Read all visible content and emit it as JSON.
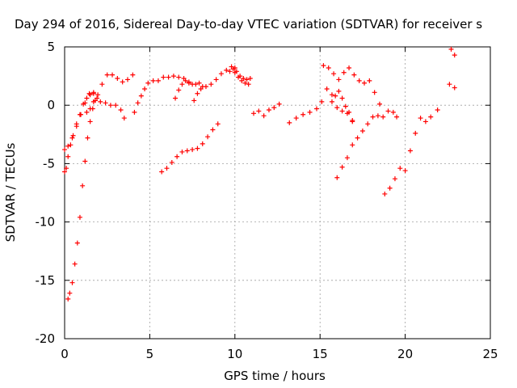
{
  "chart_data": {
    "type": "scatter",
    "title": "Day 294 of 2016, Sidereal Day-to-day VTEC variation (SDTVAR) for receiver s",
    "xlabel": "GPS time / hours",
    "ylabel": "SDTVAR / TECUs",
    "xlim": [
      0,
      25
    ],
    "ylim": [
      -20,
      5
    ],
    "xticks": [
      0,
      5,
      10,
      15,
      20,
      25
    ],
    "yticks": [
      -20,
      -15,
      -10,
      -5,
      0,
      5
    ],
    "x_tick_labels": [
      "0",
      "5",
      "10",
      "15",
      "20",
      "25"
    ],
    "y_tick_labels": [
      "-20",
      "-15",
      "-10",
      "-5",
      "0",
      "5"
    ],
    "grid": true,
    "marker": "+",
    "color": "#ff0000",
    "series": [
      {
        "x": [
          0.0,
          0.1,
          0.2,
          0.35,
          0.5,
          0.7,
          0.9,
          1.1,
          1.3,
          1.5,
          1.7
        ],
        "y": [
          -5.7,
          -5.4,
          -4.4,
          -3.4,
          -2.6,
          -1.6,
          -0.8,
          0.1,
          0.6,
          0.9,
          1.0
        ]
      },
      {
        "x": [
          0.0,
          0.2,
          0.45,
          0.7,
          0.95,
          1.2,
          1.45,
          1.7,
          1.95,
          2.2,
          2.5,
          2.8,
          3.1,
          3.4,
          3.7,
          4.0
        ],
        "y": [
          -3.8,
          -3.5,
          -2.8,
          -1.8,
          -0.8,
          0.2,
          1.0,
          1.1,
          0.9,
          1.8,
          2.6,
          2.6,
          2.3,
          2.0,
          2.2,
          2.6
        ]
      },
      {
        "x": [
          1.3,
          1.5,
          1.7,
          1.9,
          2.1,
          2.4,
          2.7,
          3.0,
          3.3,
          3.5
        ],
        "y": [
          -0.6,
          -0.3,
          0.3,
          0.6,
          0.3,
          0.2,
          0.0,
          0.0,
          -0.4,
          -1.1
        ]
      },
      {
        "x": [
          0.2,
          0.3,
          0.45,
          0.6,
          0.75,
          0.9,
          1.05,
          1.2,
          1.35,
          1.5,
          1.65,
          1.8
        ],
        "y": [
          -16.6,
          -16.1,
          -15.2,
          -13.6,
          -11.8,
          -9.6,
          -6.9,
          -4.8,
          -2.8,
          -1.4,
          -0.3,
          0.4
        ]
      },
      {
        "x": [
          4.1,
          4.3,
          4.5,
          4.7,
          4.9,
          5.2,
          5.5,
          5.8,
          6.1,
          6.4,
          6.7,
          7.0,
          7.3
        ],
        "y": [
          -0.6,
          0.2,
          0.8,
          1.4,
          1.9,
          2.1,
          2.1,
          2.4,
          2.4,
          2.5,
          2.4,
          2.3,
          2.0
        ]
      },
      {
        "x": [
          6.5,
          6.7,
          6.9,
          7.1,
          7.3,
          7.5,
          7.7,
          7.9,
          8.1
        ],
        "y": [
          0.6,
          1.3,
          1.8,
          2.1,
          1.9,
          1.8,
          1.8,
          1.9,
          1.6
        ]
      },
      {
        "x": [
          7.6,
          7.8,
          8.0,
          8.3,
          8.6,
          8.9,
          9.2,
          9.5,
          9.8,
          10.0
        ],
        "y": [
          0.4,
          1.0,
          1.4,
          1.6,
          1.8,
          2.2,
          2.7,
          3.0,
          3.3,
          3.2
        ]
      },
      {
        "x": [
          9.7,
          9.9,
          10.1,
          10.3,
          10.5,
          10.7,
          10.9
        ],
        "y": [
          2.9,
          3.1,
          2.9,
          2.5,
          2.3,
          2.2,
          2.3
        ]
      },
      {
        "x": [
          10.0,
          10.2,
          10.4,
          10.6,
          10.8
        ],
        "y": [
          2.8,
          2.4,
          2.1,
          1.9,
          1.8
        ]
      },
      {
        "x": [
          5.7,
          6.0,
          6.3,
          6.6,
          6.9,
          7.2,
          7.5,
          7.8,
          8.1,
          8.4,
          8.7,
          9.0
        ],
        "y": [
          -5.7,
          -5.4,
          -4.9,
          -4.4,
          -4.0,
          -3.9,
          -3.8,
          -3.7,
          -3.3,
          -2.7,
          -2.1,
          -1.6
        ]
      },
      {
        "x": [
          11.1,
          11.4,
          11.7,
          12.0,
          12.3,
          12.6
        ],
        "y": [
          -0.7,
          -0.5,
          -0.9,
          -0.4,
          -0.2,
          0.1
        ]
      },
      {
        "x": [
          13.2,
          13.6,
          14.0,
          14.4,
          14.8,
          15.1,
          15.4,
          15.7,
          16.0,
          16.3,
          16.6,
          16.9
        ],
        "y": [
          -1.5,
          -1.1,
          -0.8,
          -0.6,
          -0.3,
          0.3,
          1.4,
          0.9,
          -0.2,
          -0.5,
          -0.7,
          -1.4
        ]
      },
      {
        "x": [
          15.2,
          15.5,
          15.8,
          16.1,
          16.4,
          16.7,
          17.0,
          17.3,
          17.6,
          17.9,
          18.2,
          18.5
        ],
        "y": [
          3.4,
          3.2,
          2.7,
          2.2,
          2.8,
          3.2,
          2.6,
          2.1,
          1.9,
          2.1,
          1.1,
          0.1
        ]
      },
      {
        "x": [
          15.7,
          15.9,
          16.1,
          16.3,
          16.5,
          16.7,
          16.9
        ],
        "y": [
          0.3,
          0.8,
          1.2,
          0.6,
          -0.1,
          -0.6,
          -1.3
        ]
      },
      {
        "x": [
          16.0,
          16.3,
          16.6,
          16.9,
          17.2,
          17.5,
          17.8,
          18.1,
          18.4,
          18.7,
          19.0,
          19.3,
          19.5
        ],
        "y": [
          -6.2,
          -5.3,
          -4.5,
          -3.4,
          -2.8,
          -2.2,
          -1.6,
          -1.0,
          -0.9,
          -1.0,
          -0.5,
          -0.6,
          -1.0
        ]
      },
      {
        "x": [
          18.8,
          19.1,
          19.4,
          19.7,
          20.0,
          20.3,
          20.6,
          20.9,
          21.2,
          21.5,
          21.9
        ],
        "y": [
          -7.6,
          -7.1,
          -6.3,
          -5.4,
          -5.6,
          -3.9,
          -2.4,
          -1.1,
          -1.4,
          -1.0,
          -0.4
        ]
      },
      {
        "x": [
          22.6,
          22.9
        ],
        "y": [
          1.8,
          1.5
        ]
      },
      {
        "x": [
          22.7,
          22.9
        ],
        "y": [
          4.8,
          4.3
        ]
      }
    ]
  }
}
